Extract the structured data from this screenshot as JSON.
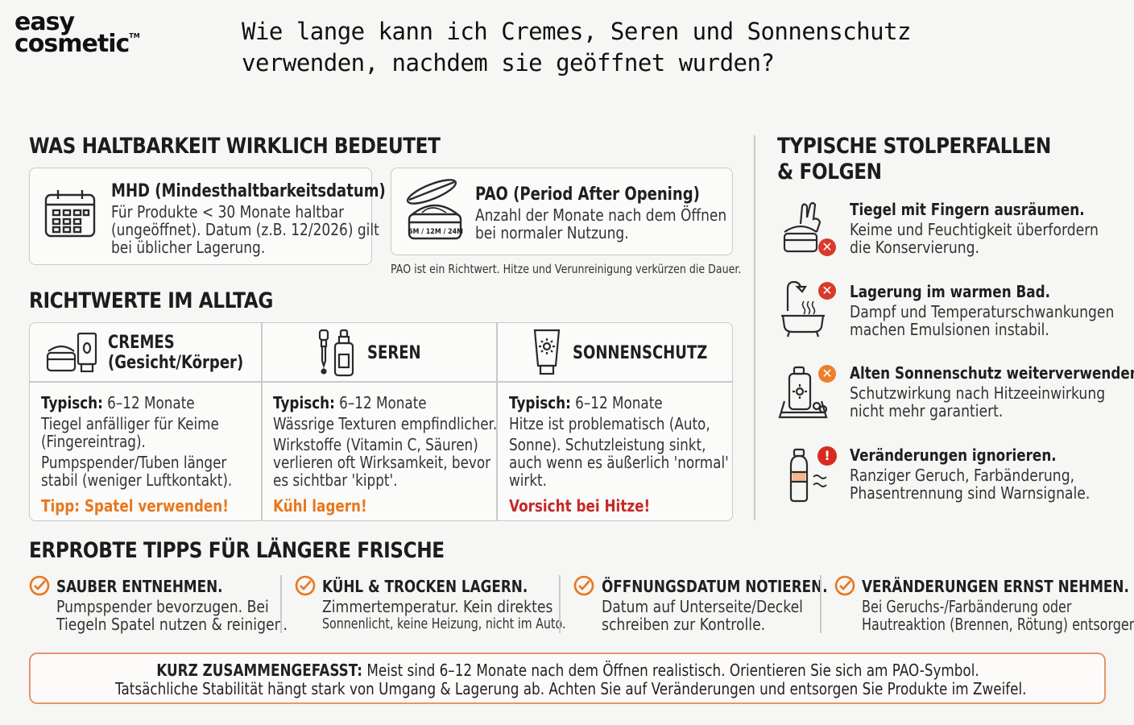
{
  "brand": {
    "line1": "easy",
    "line2": "cosmetic",
    "tm": "TM"
  },
  "title": {
    "line1": "Wie lange kann ich Cremes, Seren und Sonnenschutz",
    "line2": "verwenden, nachdem sie geöffnet wurden?"
  },
  "haltbarkeit": {
    "heading": "WAS HALTBARKEIT WIRKLICH BEDEUTET",
    "mhd": {
      "title": "MHD (Mindesthaltbarkeitsdatum)",
      "lines": [
        "Für Produkte < 30 Monate haltbar",
        "(ungeöffnet). Datum (z.B. 12/2026) gilt",
        "bei üblicher Lagerung."
      ]
    },
    "pao": {
      "title": "PAO (Period After Opening)",
      "lines": [
        "Anzahl der Monate nach dem Öffnen",
        "bei normaler Nutzung."
      ],
      "jar_label": "6M / 12M / 24M"
    },
    "note": "PAO ist ein Richtwert. Hitze und Verunreinigung verkürzen die Dauer."
  },
  "richtwerte": {
    "heading": "RICHTWERTE IM ALLTAG",
    "columns": [
      {
        "header_line1": "CREMES",
        "header_line2": "(Gesicht/Körper)",
        "typ_label": "Typisch:",
        "typ_value": " 6–12 Monate",
        "lines": [
          "Tiegel anfälliger für Keime",
          "(Fingereintrag).",
          "Pumpspender/Tuben länger",
          "stabil (weniger Luftkontakt)."
        ],
        "tip": "Tipp: Spatel verwenden!"
      },
      {
        "header_line1": "SEREN",
        "typ_label": "Typisch:",
        "typ_value": " 6–12 Monate",
        "lines": [
          "Wässrige Texturen empfindlicher.",
          "Wirkstoffe (Vitamin C, Säuren)",
          "verlieren oft Wirksamkeit, bevor",
          "es sichtbar 'kippt'."
        ],
        "tip": "Kühl lagern!"
      },
      {
        "header_line1": "SONNENSCHUTZ",
        "typ_label": "Typisch:",
        "typ_value": " 6–12 Monate",
        "lines": [
          "Hitze ist problematisch (Auto,",
          "Sonne). Schutzleistung sinkt,",
          "auch wenn es äußerlich 'normal'",
          "wirkt."
        ],
        "tip": "Vorsicht bei Hitze!"
      }
    ]
  },
  "stolperfallen": {
    "heading_line1": "TYPISCHE STOLPERFALLEN",
    "heading_line2": "& FOLGEN",
    "items": [
      {
        "title": "Tiegel mit Fingern ausräumen.",
        "lines": [
          "Keime und Feuchtigkeit überfordern",
          "die Konservierung."
        ],
        "badge": "✕"
      },
      {
        "title": "Lagerung im warmen Bad.",
        "lines": [
          "Dampf und Temperaturschwankungen",
          "machen Emulsionen instabil."
        ],
        "badge": "✕"
      },
      {
        "title": "Alten Sonnenschutz weiterverwenden.",
        "lines": [
          "Schutzwirkung nach Hitzeeinwirkung",
          "nicht mehr garantiert."
        ],
        "badge": "✕"
      },
      {
        "title": "Veränderungen ignorieren.",
        "lines": [
          "Ranziger Geruch, Farbänderung,",
          "Phasentrennung sind Warnsignale."
        ],
        "badge": "!"
      }
    ]
  },
  "tipps": {
    "heading": "ERPROBTE TIPPS FÜR LÄNGERE FRISCHE",
    "items": [
      {
        "title": "SAUBER ENTNEHMEN.",
        "line1": "Pumpspender bevorzugen. Bei",
        "line2": "Tiegeln Spatel nutzen & reinigen."
      },
      {
        "title": "KÜHL & TROCKEN LAGERN.",
        "line1": "Zimmertemperatur. Kein direktes",
        "line2": "Sonnenlicht, keine Heizung, nicht im Auto."
      },
      {
        "title": "ÖFFNUNGSDATUM NOTIEREN.",
        "line1": "Datum auf Unterseite/Deckel",
        "line2": "schreiben zur Kontrolle."
      },
      {
        "title": "VERÄNDERUNGEN ERNST NEHMEN.",
        "line1": "Bei Geruchs-/Farbänderung oder",
        "line2": "Hautreaktion (Brennen, Rötung) entsorgen."
      }
    ]
  },
  "summary": {
    "label": "KURZ ZUSAMMENGEFASST:",
    "line1": " Meist sind 6–12 Monate nach dem Öffnen realistisch. Orientieren Sie sich am PAO-Symbol.",
    "line2": "Tatsächliche Stabilität hängt stark von Umgang & Lagerung ab. Achten Sie auf Veränderungen und entsorgen Sie Produkte im Zweifel."
  },
  "colors": {
    "orange": "#e8771e",
    "red": "#c62828",
    "border": "#c9c9c9"
  }
}
